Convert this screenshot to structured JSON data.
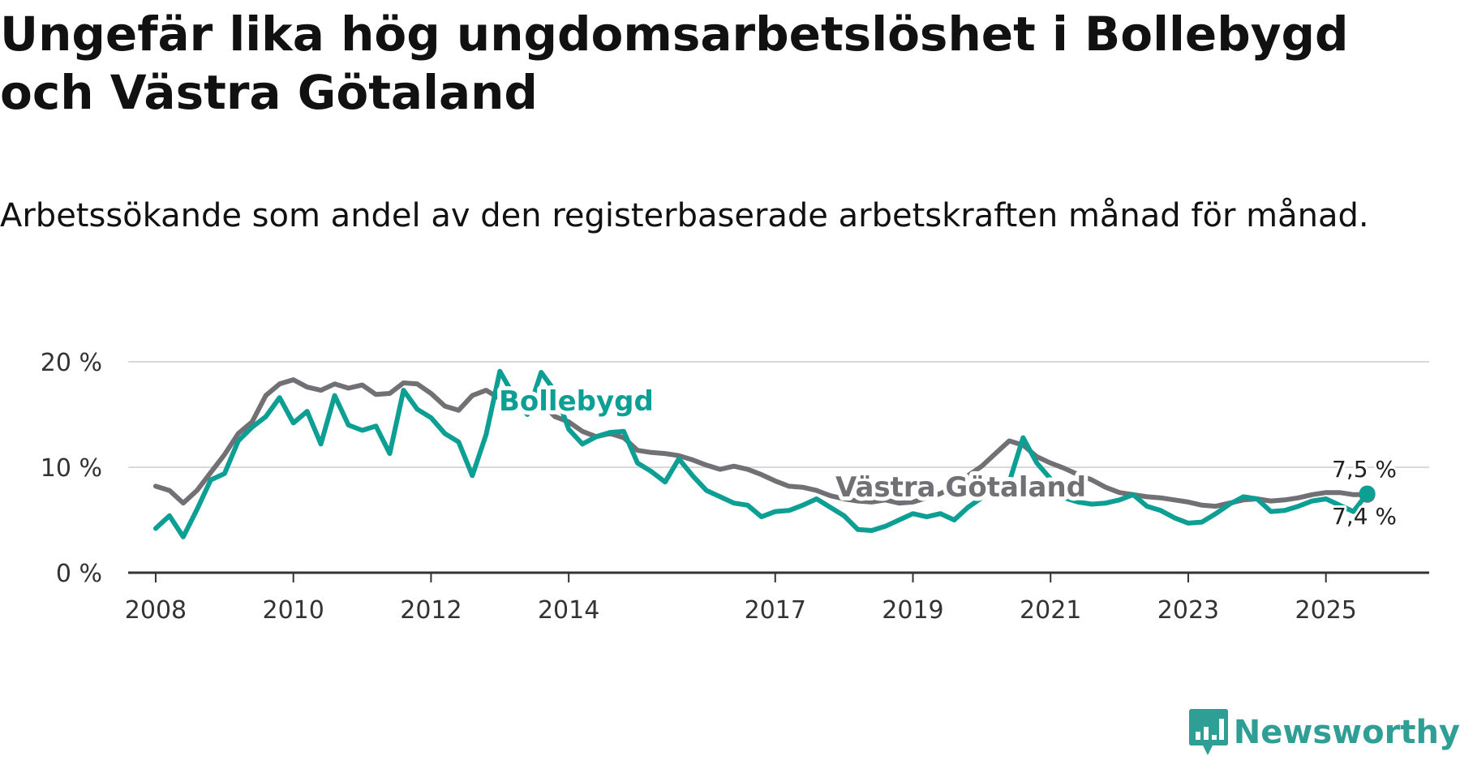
{
  "title": "Ungefär lika hög ungdomsarbetslöshet i Bollebygd och Västra Götaland",
  "subtitle": "Arbetssökande som andel av den registerbaserade arbetskraften månad för månad.",
  "logo": {
    "text": "Newsworthy",
    "icon": "newsworthy-logo-icon",
    "color": "#2f9e95"
  },
  "chart_data": {
    "type": "line",
    "title": "Ungefär lika hög ungdomsarbetslöshet i Bollebygd och Västra Götaland",
    "subtitle": "Arbetssökande som andel av den registerbaserade arbetskraften månad för månad.",
    "xlabel": "",
    "ylabel": "",
    "xlim": [
      2007.6,
      2026.5
    ],
    "ylim": [
      0,
      20
    ],
    "grid": true,
    "legend": "inline",
    "y_ticks": [
      {
        "value": 0,
        "label": "0 %"
      },
      {
        "value": 10,
        "label": "10 %"
      },
      {
        "value": 20,
        "label": "20 %"
      }
    ],
    "x_ticks": [
      {
        "value": 2008,
        "label": "2008"
      },
      {
        "value": 2010,
        "label": "2010"
      },
      {
        "value": 2012,
        "label": "2012"
      },
      {
        "value": 2014,
        "label": "2014"
      },
      {
        "value": 2017,
        "label": "2017"
      },
      {
        "value": 2019,
        "label": "2019"
      },
      {
        "value": 2021,
        "label": "2021"
      },
      {
        "value": 2023,
        "label": "2023"
      },
      {
        "value": 2025,
        "label": "2025"
      }
    ],
    "series": [
      {
        "name": "Västra Götaland",
        "color": "#717075",
        "end_label": "7,4 %",
        "x": [
          2008.0,
          2008.2,
          2008.4,
          2008.6,
          2008.8,
          2009.0,
          2009.2,
          2009.4,
          2009.6,
          2009.8,
          2010.0,
          2010.2,
          2010.4,
          2010.6,
          2010.8,
          2011.0,
          2011.2,
          2011.4,
          2011.6,
          2011.8,
          2012.0,
          2012.2,
          2012.4,
          2012.6,
          2012.8,
          2013.0,
          2013.2,
          2013.4,
          2013.6,
          2013.8,
          2014.0,
          2014.2,
          2014.4,
          2014.6,
          2014.8,
          2015.0,
          2015.2,
          2015.4,
          2015.6,
          2015.8,
          2016.0,
          2016.2,
          2016.4,
          2016.6,
          2016.8,
          2017.0,
          2017.2,
          2017.4,
          2017.6,
          2017.8,
          2018.0,
          2018.2,
          2018.4,
          2018.6,
          2018.8,
          2019.0,
          2019.2,
          2019.4,
          2019.6,
          2019.8,
          2020.0,
          2020.2,
          2020.4,
          2020.6,
          2020.8,
          2021.0,
          2021.2,
          2021.4,
          2021.6,
          2021.8,
          2022.0,
          2022.2,
          2022.4,
          2022.6,
          2022.8,
          2023.0,
          2023.2,
          2023.4,
          2023.6,
          2023.8,
          2024.0,
          2024.2,
          2024.4,
          2024.6,
          2024.8,
          2025.0,
          2025.2,
          2025.4,
          2025.6
        ],
        "values": [
          8.2,
          7.8,
          6.6,
          7.8,
          9.5,
          11.2,
          13.2,
          14.3,
          16.8,
          17.9,
          18.3,
          17.6,
          17.3,
          17.9,
          17.5,
          17.8,
          16.9,
          17.0,
          18.0,
          17.9,
          17.0,
          15.8,
          15.4,
          16.8,
          17.3,
          16.5,
          15.3,
          16.6,
          16.1,
          14.8,
          14.3,
          13.4,
          12.9,
          13.2,
          12.8,
          11.6,
          11.4,
          11.3,
          11.1,
          10.7,
          10.2,
          9.8,
          10.1,
          9.8,
          9.3,
          8.7,
          8.2,
          8.1,
          7.8,
          7.3,
          7.0,
          6.8,
          6.7,
          6.9,
          6.6,
          6.7,
          7.1,
          7.5,
          8.2,
          9.2,
          10.1,
          11.3,
          12.5,
          12.1,
          11.0,
          10.4,
          9.9,
          9.3,
          8.8,
          8.1,
          7.6,
          7.4,
          7.2,
          7.1,
          6.9,
          6.7,
          6.4,
          6.3,
          6.6,
          6.9,
          7.0,
          6.8,
          6.9,
          7.1,
          7.4,
          7.6,
          7.6,
          7.4,
          7.4
        ]
      },
      {
        "name": "Bollebygd",
        "color": "#0d9e94",
        "end_label": "7,5 %",
        "x": [
          2008.0,
          2008.2,
          2008.4,
          2008.6,
          2008.8,
          2009.0,
          2009.2,
          2009.4,
          2009.6,
          2009.8,
          2010.0,
          2010.2,
          2010.4,
          2010.6,
          2010.8,
          2011.0,
          2011.2,
          2011.4,
          2011.6,
          2011.8,
          2012.0,
          2012.2,
          2012.4,
          2012.6,
          2012.8,
          2013.0,
          2013.2,
          2013.4,
          2013.6,
          2013.8,
          2014.0,
          2014.2,
          2014.4,
          2014.6,
          2014.8,
          2015.0,
          2015.2,
          2015.4,
          2015.6,
          2015.8,
          2016.0,
          2016.2,
          2016.4,
          2016.6,
          2016.8,
          2017.0,
          2017.2,
          2017.4,
          2017.6,
          2017.8,
          2018.0,
          2018.2,
          2018.4,
          2018.6,
          2018.8,
          2019.0,
          2019.2,
          2019.4,
          2019.6,
          2019.8,
          2020.0,
          2020.2,
          2020.4,
          2020.6,
          2020.8,
          2021.0,
          2021.2,
          2021.4,
          2021.6,
          2021.8,
          2022.0,
          2022.2,
          2022.4,
          2022.6,
          2022.8,
          2023.0,
          2023.2,
          2023.4,
          2023.6,
          2023.8,
          2024.0,
          2024.2,
          2024.4,
          2024.6,
          2024.8,
          2025.0,
          2025.2,
          2025.4,
          2025.6
        ],
        "values": [
          4.2,
          5.4,
          3.4,
          6.0,
          8.8,
          9.4,
          12.5,
          13.8,
          14.8,
          16.6,
          14.2,
          15.3,
          12.2,
          16.8,
          14.0,
          13.5,
          13.9,
          11.3,
          17.3,
          15.5,
          14.7,
          13.2,
          12.4,
          9.2,
          13.1,
          19.1,
          16.8,
          15.0,
          19.0,
          17.2,
          13.6,
          12.2,
          12.9,
          13.3,
          13.4,
          10.4,
          9.6,
          8.6,
          10.8,
          9.2,
          7.8,
          7.2,
          6.6,
          6.4,
          5.3,
          5.8,
          5.9,
          6.4,
          7.0,
          6.2,
          5.4,
          4.1,
          4.0,
          4.4,
          5.0,
          5.6,
          5.3,
          5.6,
          5.0,
          6.2,
          7.1,
          8.0,
          8.6,
          12.8,
          10.4,
          8.9,
          7.1,
          6.7,
          6.5,
          6.6,
          6.9,
          7.4,
          6.3,
          5.9,
          5.2,
          4.7,
          4.8,
          5.6,
          6.5,
          7.2,
          7.0,
          5.8,
          5.9,
          6.3,
          6.8,
          7.0,
          6.4,
          5.8,
          7.5
        ]
      }
    ]
  }
}
